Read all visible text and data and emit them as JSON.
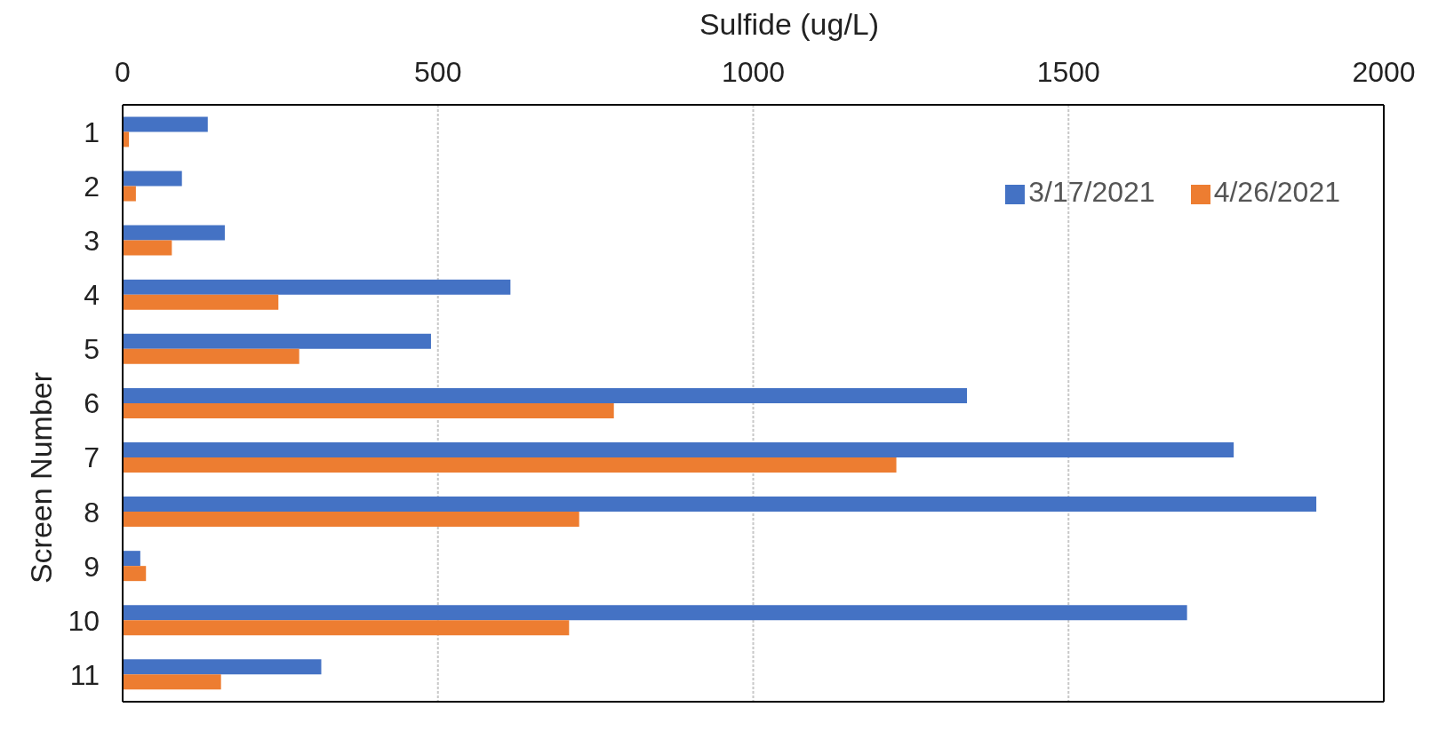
{
  "chart_data": {
    "type": "bar",
    "orientation": "horizontal",
    "xlabel": "Sulfide (ug/L)",
    "ylabel": "Screen Number",
    "categories": [
      "1",
      "2",
      "3",
      "4",
      "5",
      "6",
      "7",
      "8",
      "9",
      "10",
      "11"
    ],
    "series": [
      {
        "name": "3/17/2021",
        "color": "#4472c4",
        "values": [
          135,
          94,
          162,
          615,
          489,
          1339,
          1762,
          1893,
          28,
          1688,
          315
        ]
      },
      {
        "name": "4/26/2021",
        "color": "#ed7d31",
        "values": [
          10,
          21,
          78,
          247,
          280,
          779,
          1227,
          724,
          37,
          708,
          156
        ]
      }
    ],
    "xlim": [
      0,
      2000
    ],
    "xticks": [
      0,
      500,
      1000,
      1500,
      2000
    ],
    "grid": "x",
    "legend": "top right"
  }
}
